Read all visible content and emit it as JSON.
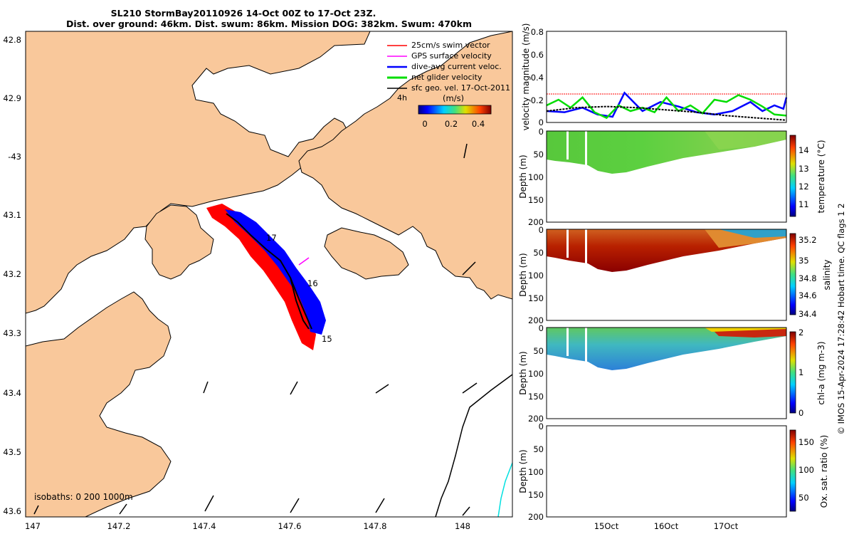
{
  "title": {
    "line1": "SL210 StormBay20110926 14-Oct 00Z to 17-Oct 23Z.",
    "line2": "Dist. over ground: 46km. Dist. swum: 86km. Mission DOG: 382km. Swum: 470km"
  },
  "map": {
    "lon_ticks": [
      "147",
      "147.2",
      "147.4",
      "147.6",
      "147.8",
      "148"
    ],
    "lat_ticks": [
      "42.8",
      "42.9",
      "-43",
      "43.1",
      "43.2",
      "43.3",
      "43.4",
      "43.5",
      "43.6"
    ],
    "legend": [
      {
        "label": "25cm/s swim vector",
        "color": "#ff0000"
      },
      {
        "label": "GPS surface velocity",
        "color": "#ff00ff"
      },
      {
        "label": "dive-avg current veloc.",
        "color": "#0000ff"
      },
      {
        "label": "net glider velocity",
        "color": "#00dd00"
      },
      {
        "label": "sfc geo. vel. 17-Oct-2011",
        "color": "#000000"
      }
    ],
    "legend_small": "4h",
    "colorbar_title": "(m/s)",
    "colorbar_ticks": [
      "0",
      "0.2",
      "0.4"
    ],
    "isobaths_label": "isobaths: 0   200  1000m",
    "day_labels": [
      "17",
      "16",
      "15"
    ]
  },
  "velocity_panel": {
    "ylabel": "velocity magnitude (m/s)",
    "yticks": [
      "0.8",
      "0.6",
      "0.4",
      "0.2",
      "0"
    ],
    "ylim": [
      0,
      0.8
    ]
  },
  "chart_data": [
    {
      "type": "line",
      "title": "",
      "ylabel": "velocity magnitude (m/s)",
      "ylim": [
        0,
        0.8
      ],
      "x_range_days": [
        14.0,
        18.0
      ],
      "series": [
        {
          "name": "swim speed (red)",
          "color": "#ff0000",
          "x": [
            14.0,
            18.0
          ],
          "values": [
            0.25,
            0.25
          ]
        },
        {
          "name": "dive-avg current (blue)",
          "color": "#0000ff",
          "x": [
            14.0,
            14.3,
            14.6,
            14.85,
            15.1,
            15.3,
            15.6,
            15.9,
            16.2,
            16.5,
            16.8,
            17.1,
            17.4,
            17.6,
            17.8,
            17.95,
            18.0
          ],
          "values": [
            0.1,
            0.09,
            0.13,
            0.07,
            0.05,
            0.26,
            0.1,
            0.18,
            0.14,
            0.09,
            0.07,
            0.1,
            0.18,
            0.1,
            0.15,
            0.12,
            0.22
          ]
        },
        {
          "name": "net glider velocity (green)",
          "color": "#00dd00",
          "x": [
            14.0,
            14.2,
            14.4,
            14.6,
            14.8,
            15.0,
            15.2,
            15.4,
            15.6,
            15.8,
            16.0,
            16.2,
            16.4,
            16.6,
            16.8,
            17.0,
            17.2,
            17.4,
            17.6,
            17.8,
            18.0
          ],
          "values": [
            0.15,
            0.2,
            0.13,
            0.22,
            0.09,
            0.04,
            0.15,
            0.1,
            0.13,
            0.09,
            0.22,
            0.1,
            0.15,
            0.08,
            0.2,
            0.18,
            0.24,
            0.2,
            0.14,
            0.07,
            0.06
          ]
        },
        {
          "name": "GPS/geo surface (black dotted)",
          "color": "#000000",
          "x": [
            14.0,
            14.5,
            15.0,
            15.5,
            16.0,
            16.5,
            17.0,
            17.5,
            18.0
          ],
          "values": [
            0.1,
            0.13,
            0.14,
            0.13,
            0.11,
            0.09,
            0.06,
            0.04,
            0.02
          ]
        }
      ]
    },
    {
      "type": "heatmap",
      "ylabel": "Depth (m)",
      "colorbar_label": "temperature (°C)",
      "yticks": [
        "0",
        "50",
        "100",
        "150",
        "200"
      ],
      "ylim": [
        0,
        200
      ],
      "colorbar_ticks": [
        "14",
        "13",
        "12",
        "11"
      ],
      "colorbar_range": [
        10.5,
        14.7
      ],
      "typical_value": 12.8
    },
    {
      "type": "heatmap",
      "ylabel": "Depth (m)",
      "colorbar_label": "salinity",
      "yticks": [
        "0",
        "50",
        "100",
        "150",
        "200"
      ],
      "ylim": [
        0,
        200
      ],
      "colorbar_ticks": [
        "35.2",
        "35",
        "34.8",
        "34.6",
        "34.4"
      ],
      "colorbar_range": [
        34.35,
        35.3
      ],
      "typical_value": 35.15
    },
    {
      "type": "heatmap",
      "ylabel": "Depth (m)",
      "colorbar_label": "chl-a (mg m-3)",
      "yticks": [
        "0",
        "50",
        "100",
        "150",
        "200"
      ],
      "ylim": [
        0,
        200
      ],
      "colorbar_ticks": [
        "2",
        "1",
        "0"
      ],
      "colorbar_range": [
        0,
        2
      ],
      "typical_value": 0.8
    },
    {
      "type": "heatmap",
      "ylabel": "Depth (m)",
      "colorbar_label": "Ox. sat. ratio (%)",
      "yticks": [
        "0",
        "50",
        "100",
        "150",
        "200"
      ],
      "ylim": [
        0,
        200
      ],
      "colorbar_ticks": [
        "150",
        "100",
        "50"
      ],
      "colorbar_range": [
        20,
        175
      ],
      "xticks": [
        "15Oct",
        "16Oct",
        "17Oct"
      ]
    }
  ],
  "sidebar_text": "© IMOS 15-Apr-2024 17:28:42 Hobart time. QC flags 1  2"
}
